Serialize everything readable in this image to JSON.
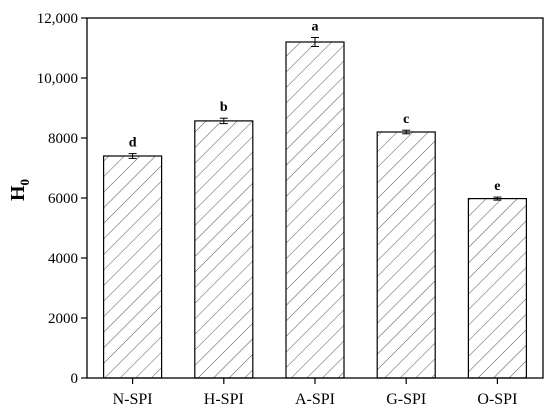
{
  "chart_data": {
    "type": "bar",
    "title": "",
    "xlabel": "",
    "ylabel": "H",
    "ylabel_subscript": "0",
    "categories": [
      "N-SPI",
      "H-SPI",
      "A-SPI",
      "G-SPI",
      "O-SPI"
    ],
    "values": [
      7400,
      8570,
      11200,
      8200,
      5980
    ],
    "errors": [
      80,
      90,
      150,
      60,
      50
    ],
    "significance": [
      "d",
      "b",
      "a",
      "c",
      "e"
    ],
    "ylim": [
      0,
      12000
    ],
    "yticks": [
      0,
      2000,
      4000,
      6000,
      8000,
      10000,
      12000
    ],
    "ytick_labels": [
      "0",
      "2000",
      "4000",
      "6000",
      "8000",
      "10,000",
      "12,000"
    ],
    "bar_fill": "hatched-diagonal",
    "bar_color": "#ffffff",
    "edge_color": "#000000",
    "grid": false,
    "legend": "none"
  }
}
